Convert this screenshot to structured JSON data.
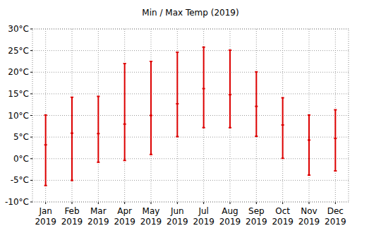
{
  "chart_data": {
    "type": "range",
    "title": "Min / Max Temp (2019)",
    "categories": [
      "Jan 2019",
      "Feb 2019",
      "Mar 2019",
      "Apr 2019",
      "May 2019",
      "Jun 2019",
      "Jul 2019",
      "Aug 2019",
      "Sep 2019",
      "Oct 2019",
      "Nov 2019",
      "Dec 2019"
    ],
    "low": [
      -6.2,
      -5.0,
      -0.8,
      -0.4,
      1.0,
      5.1,
      7.2,
      7.2,
      5.2,
      0.1,
      -3.8,
      -2.8
    ],
    "high": [
      10.1,
      14.2,
      14.4,
      22.0,
      22.5,
      24.6,
      25.8,
      25.1,
      20.1,
      14.1,
      10.1,
      11.3
    ],
    "values": [
      3.2,
      5.9,
      5.8,
      8.0,
      10.0,
      12.7,
      16.2,
      14.8,
      12.1,
      7.8,
      4.3,
      4.7
    ],
    "color": "#dd0000",
    "ylim": [
      -10,
      30
    ],
    "yticks": [
      {
        "value": -10,
        "label": "-10°C"
      },
      {
        "value": -5,
        "label": "-5°C"
      },
      {
        "value": 0,
        "label": "0°C"
      },
      {
        "value": 5,
        "label": "5°C"
      },
      {
        "value": 10,
        "label": "10°C"
      },
      {
        "value": 15,
        "label": "15°C"
      },
      {
        "value": 20,
        "label": "20°C"
      },
      {
        "value": 25,
        "label": "25°C"
      },
      {
        "value": 30,
        "label": "30°C"
      }
    ],
    "grid": true
  }
}
